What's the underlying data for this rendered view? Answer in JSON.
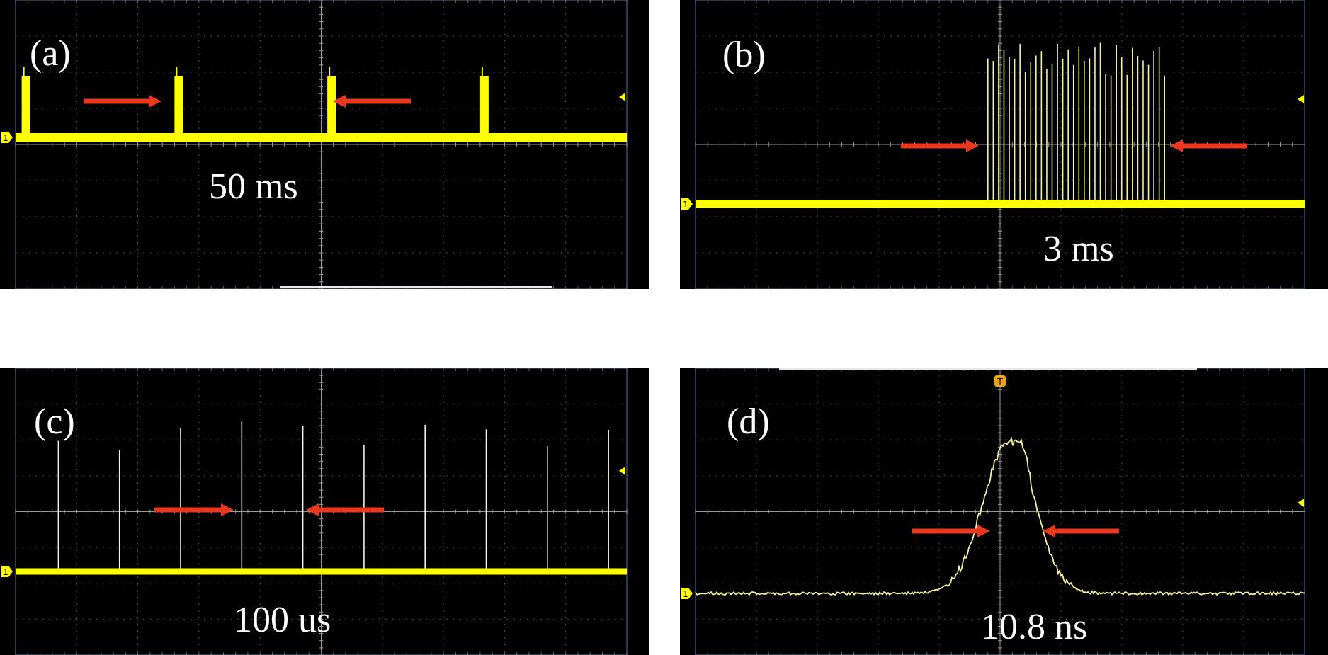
{
  "colors": {
    "background": "#000000",
    "trace": "#ffff00",
    "grid": "#a0a0a0",
    "arrow": "#e8391e",
    "text": "#ffffff"
  },
  "chart_data": [
    {
      "panel": "(a)",
      "type": "line",
      "scale_label": "50 ms",
      "time_per_div": "50 ms",
      "divisions": {
        "x": 10,
        "y": 8
      },
      "pulse_groups_at_div": [
        0.1,
        2.6,
        5.1,
        7.6
      ],
      "grid": true
    },
    {
      "panel": "(b)",
      "type": "line",
      "scale_label": "3 ms",
      "time_per_div": "3 ms",
      "divisions": {
        "x": 10,
        "y": 8
      },
      "burst_span_div": [
        4.8,
        7.7
      ],
      "grid": true
    },
    {
      "panel": "(c)",
      "type": "line",
      "scale_label": "100 us",
      "time_per_div": "100 us",
      "divisions": {
        "x": 10,
        "y": 8
      },
      "pulse_positions_div": [
        0.7,
        1.7,
        2.7,
        3.7,
        4.7,
        5.7,
        6.7,
        7.7,
        8.7,
        9.7
      ],
      "grid": true
    },
    {
      "panel": "(d)",
      "type": "line",
      "scale_label": "10.8 ns",
      "fwhm": "10.8 ns",
      "divisions": {
        "x": 10,
        "y": 8
      },
      "peak_at_div": 5.2,
      "grid": true
    }
  ]
}
